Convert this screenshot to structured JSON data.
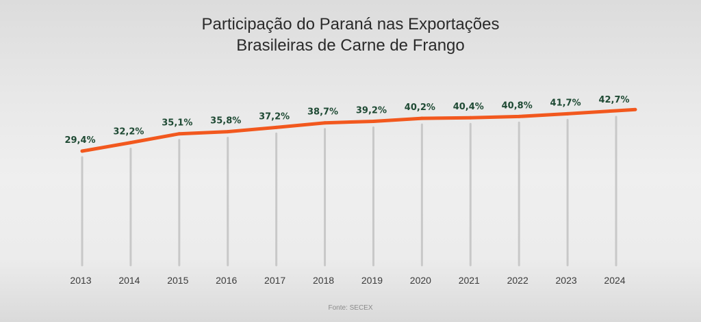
{
  "chart_data": {
    "type": "line",
    "title": [
      "Participação do Paraná nas Exportações",
      "Brasileiras de Carne de Frango"
    ],
    "categories": [
      "2013",
      "2014",
      "2015",
      "2016",
      "2017",
      "2018",
      "2019",
      "2020",
      "2021",
      "2022",
      "2023",
      "2024"
    ],
    "values": [
      29.4,
      32.2,
      35.1,
      35.8,
      37.2,
      38.7,
      39.2,
      40.2,
      40.4,
      40.8,
      41.7,
      42.7
    ],
    "data_labels": [
      "29,4%",
      "32,2%",
      "35,1%",
      "35,8%",
      "37,2%",
      "38,7%",
      "39,2%",
      "40,2%",
      "40,4%",
      "40,8%",
      "41,7%",
      "42,7%"
    ],
    "unit": "%",
    "series_color": "#f2581e",
    "label_color": "#1f4a34",
    "drop_line_color": "#c8c8c8",
    "grid": false,
    "legend": "none"
  },
  "source": "Fonte: SECEX"
}
